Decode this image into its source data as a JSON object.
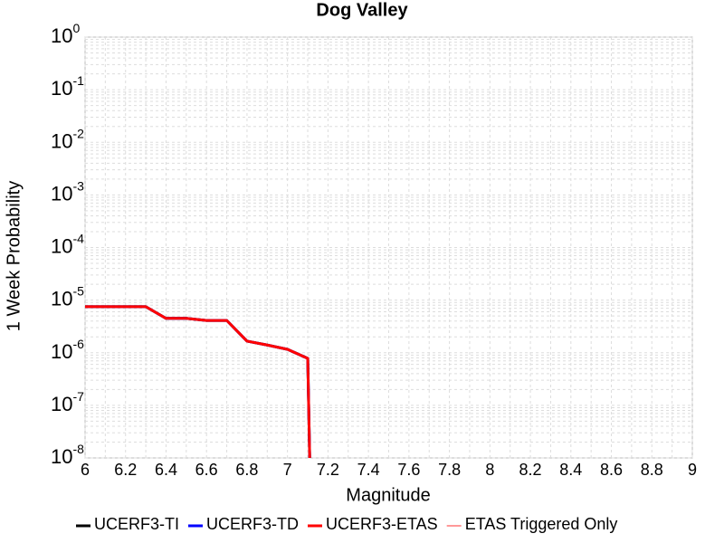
{
  "chart_data": {
    "type": "line",
    "title": "Dog Valley",
    "xlabel": "Magnitude",
    "ylabel": "1 Week Probability",
    "log_y": true,
    "grid": true,
    "legend": "bottom",
    "x": [
      6,
      6.1,
      6.2,
      6.3,
      6.4,
      6.5,
      6.6,
      6.7,
      6.8,
      6.9,
      7,
      7.1,
      7.12
    ],
    "series": [
      {
        "name": "UCERF3-TI",
        "color": "#000000",
        "values": [
          7.5e-06,
          7.5e-06,
          7.5e-06,
          7.5e-06,
          4.5e-06,
          4.5e-06,
          4.1e-06,
          4.1e-06,
          1.66e-06,
          1.4e-06,
          1.16e-06,
          7.8e-07,
          1e-10
        ]
      },
      {
        "name": "UCERF3-TD",
        "color": "#0000ff",
        "values": [
          7.5e-06,
          7.5e-06,
          7.5e-06,
          7.5e-06,
          4.5e-06,
          4.5e-06,
          4.1e-06,
          4.1e-06,
          1.66e-06,
          1.4e-06,
          1.16e-06,
          7.8e-07,
          1e-10
        ]
      },
      {
        "name": "UCERF3-ETAS",
        "color": "#ff0000",
        "values": [
          7.5e-06,
          7.5e-06,
          7.5e-06,
          7.5e-06,
          4.5e-06,
          4.5e-06,
          4.1e-06,
          4.1e-06,
          1.66e-06,
          1.4e-06,
          1.16e-06,
          7.8e-07,
          1e-10
        ]
      },
      {
        "name": "ETAS Triggered Only",
        "color": "#ff9999",
        "values": [
          null,
          null,
          null,
          null,
          null,
          null,
          null,
          null,
          null,
          null,
          null,
          null,
          null
        ]
      }
    ],
    "xlim": [
      6,
      9
    ],
    "xticks": [
      6,
      6.2,
      6.4,
      6.6,
      6.8,
      7,
      7.2,
      7.4,
      7.6,
      7.8,
      8,
      8.2,
      8.4,
      8.6,
      8.8,
      9
    ],
    "ylim": [
      1e-08,
      1
    ],
    "yticks": [
      {
        "value": 1e-08,
        "label": "10",
        "exponent": "-8"
      },
      {
        "value": 1e-07,
        "label": "10",
        "exponent": "-7"
      },
      {
        "value": 1e-06,
        "label": "10",
        "exponent": "-6"
      },
      {
        "value": 1e-05,
        "label": "10",
        "exponent": "-5"
      },
      {
        "value": 0.0001,
        "label": "10",
        "exponent": "-4"
      },
      {
        "value": 0.001,
        "label": "10",
        "exponent": "-3"
      },
      {
        "value": 0.01,
        "label": "10",
        "exponent": "-2"
      },
      {
        "value": 0.1,
        "label": "10",
        "exponent": "-1"
      },
      {
        "value": 1,
        "label": "10",
        "exponent": "0"
      }
    ]
  }
}
